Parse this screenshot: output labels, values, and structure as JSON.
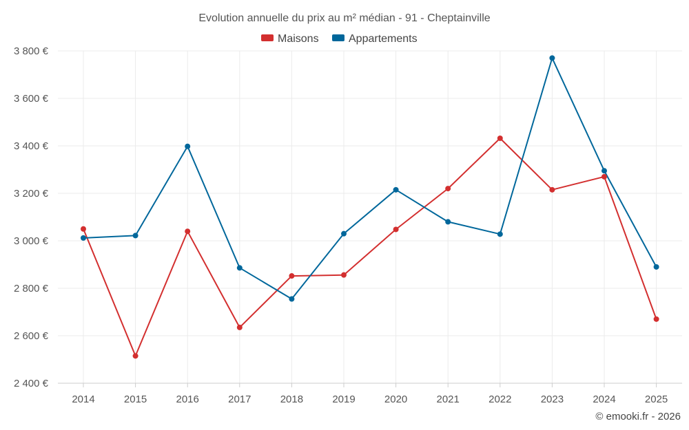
{
  "chart_data": {
    "type": "line",
    "title": "Evolution annuelle du prix au m² médian - 91 - Cheptainville",
    "categories": [
      "2014",
      "2015",
      "2016",
      "2017",
      "2018",
      "2019",
      "2020",
      "2021",
      "2022",
      "2023",
      "2024",
      "2025"
    ],
    "series": [
      {
        "name": "Maisons",
        "color": "#d32f2f",
        "values": [
          3050,
          2515,
          3040,
          2635,
          2852,
          2856,
          3048,
          3220,
          3432,
          3215,
          3270,
          2670
        ]
      },
      {
        "name": "Appartements",
        "color": "#00679b",
        "values": [
          3012,
          3022,
          3398,
          2886,
          2755,
          3030,
          3215,
          3080,
          3028,
          3770,
          3295,
          2890
        ]
      }
    ],
    "ylim": [
      2400,
      3800
    ],
    "yticks": [
      2400,
      2600,
      2800,
      3000,
      3200,
      3400,
      3600,
      3800
    ],
    "ytick_labels": [
      "2 400 €",
      "2 600 €",
      "2 800 €",
      "3 000 €",
      "3 200 €",
      "3 400 €",
      "3 600 €",
      "3 800 €"
    ],
    "xlabel": "",
    "ylabel": "",
    "grid": true,
    "legend_position": "top-center"
  },
  "credit": "© emooki.fr - 2026"
}
